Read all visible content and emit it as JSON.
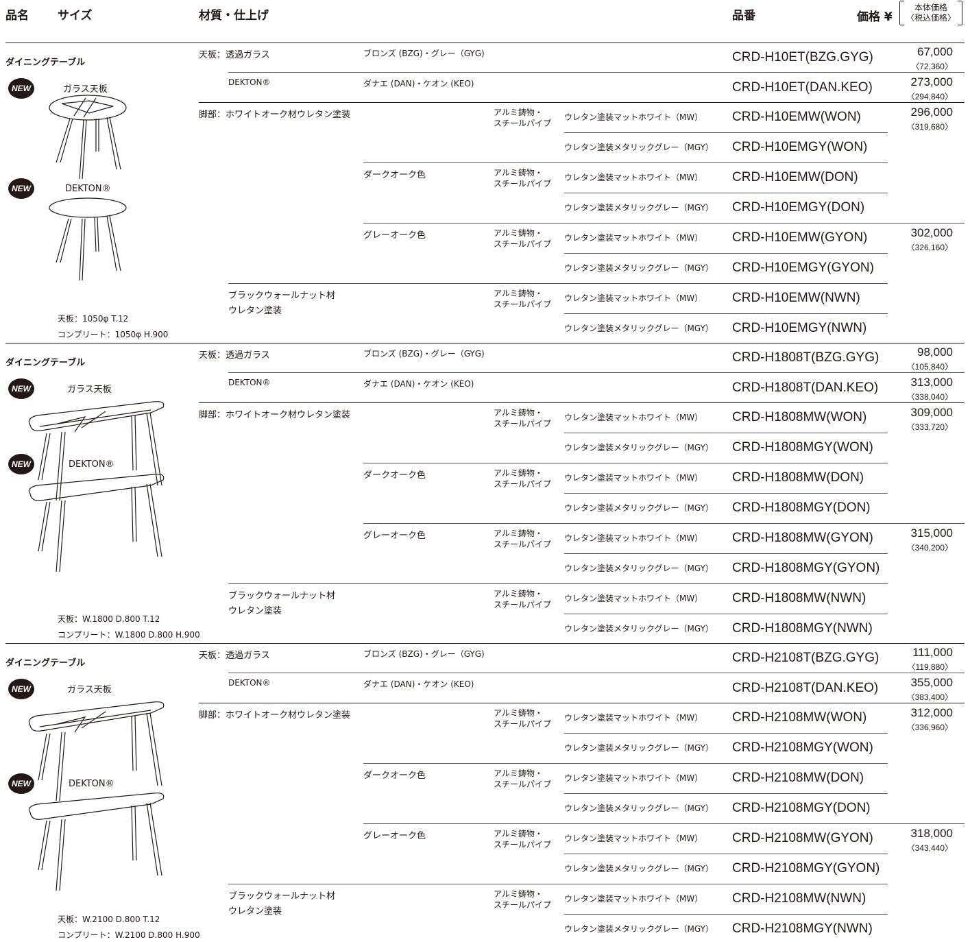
{
  "header": {
    "name": "品名",
    "size": "サイズ",
    "material": "材質・仕上げ",
    "part_number": "品番",
    "price": "価格 ¥",
    "price_note_1": "本体価格",
    "price_note_2": "〈税込価格〉"
  },
  "sections": [
    {
      "title": "ダイニングテーブル",
      "badge1": "NEW",
      "label1": "ガラス天板",
      "badge2": "NEW",
      "label2": "DEKTON®",
      "dim1": "天板：1050φ T.12",
      "dim2": "コンプリート：1050φ H.900",
      "top_glass_label": "天板：透過ガラス",
      "top_glass_color": "ブロンズ (BZG)・グレー（GYG)",
      "top_glass_pn": "CRD-H10ET(BZG.GYG)",
      "top_glass_price": "67,000",
      "top_glass_tax": "〈72,360〉",
      "top_dekton_label": "DEKTON®",
      "top_dekton_color": "ダナエ (DAN)・ケオン (KEO)",
      "top_dekton_pn": "CRD-H10ET(DAN.KEO)",
      "top_dekton_price": "273,000",
      "top_dekton_tax": "〈294,840〉",
      "leg_label": "脚部：ホワイトオーク材ウレタン塗装",
      "leg_dark": "ダークオーク色",
      "leg_grey": "グレーオーク色",
      "leg_walnut_1": "ブラックウォールナット材",
      "leg_walnut_2": "ウレタン塗装",
      "pns": [
        "CRD-H10EMW(WON)",
        "CRD-H10EMGY(WON)",
        "CRD-H10EMW(DON)",
        "CRD-H10EMGY(DON)",
        "CRD-H10EMW(GYON)",
        "CRD-H10EMGY(GYON)",
        "CRD-H10EMW(NWN)",
        "CRD-H10EMGY(NWN)"
      ],
      "price_a": "296,000",
      "tax_a": "〈319,680〉",
      "price_b": "302,000",
      "tax_b": "〈326,160〉"
    },
    {
      "title": "ダイニングテーブル",
      "badge1": "NEW",
      "label1": "ガラス天板",
      "badge2": "NEW",
      "label2": "DEKTON®",
      "dim1": "天板：W.1800 D.800 T.12",
      "dim2": "コンプリート：W.1800 D.800 H.900",
      "top_glass_label": "天板：透過ガラス",
      "top_glass_color": "ブロンズ (BZG)・グレー（GYG)",
      "top_glass_pn": "CRD-H1808T(BZG.GYG)",
      "top_glass_price": "98,000",
      "top_glass_tax": "〈105,840〉",
      "top_dekton_label": "DEKTON®",
      "top_dekton_color": "ダナエ (DAN)・ケオン (KEO)",
      "top_dekton_pn": "CRD-H1808T(DAN.KEO)",
      "top_dekton_price": "313,000",
      "top_dekton_tax": "〈338,040〉",
      "leg_label": "脚部：ホワイトオーク材ウレタン塗装",
      "leg_dark": "ダークオーク色",
      "leg_grey": "グレーオーク色",
      "leg_walnut_1": "ブラックウォールナット材",
      "leg_walnut_2": "ウレタン塗装",
      "pns": [
        "CRD-H1808MW(WON)",
        "CRD-H1808MGY(WON)",
        "CRD-H1808MW(DON)",
        "CRD-H1808MGY(DON)",
        "CRD-H1808MW(GYON)",
        "CRD-H1808MGY(GYON)",
        "CRD-H1808MW(NWN)",
        "CRD-H1808MGY(NWN)"
      ],
      "price_a": "309,000",
      "tax_a": "〈333,720〉",
      "price_b": "315,000",
      "tax_b": "〈340,200〉"
    },
    {
      "title": "ダイニングテーブル",
      "badge1": "NEW",
      "label1": "ガラス天板",
      "badge2": "NEW",
      "label2": "DEKTON®",
      "dim1": "天板：W.2100 D.800 T.12",
      "dim2": "コンプリート：W.2100 D.800 H.900",
      "top_glass_label": "天板：透過ガラス",
      "top_glass_color": "ブロンズ (BZG)・グレー（GYG)",
      "top_glass_pn": "CRD-H2108T(BZG.GYG)",
      "top_glass_price": "111,000",
      "top_glass_tax": "〈119,880〉",
      "top_dekton_label": "DEKTON®",
      "top_dekton_color": "ダナエ (DAN)・ケオン (KEO)",
      "top_dekton_pn": "CRD-H2108T(DAN.KEO)",
      "top_dekton_price": "355,000",
      "top_dekton_tax": "〈383,400〉",
      "leg_label": "脚部：ホワイトオーク材ウレタン塗装",
      "leg_dark": "ダークオーク色",
      "leg_grey": "グレーオーク色",
      "leg_walnut_1": "ブラックウォールナット材",
      "leg_walnut_2": "ウレタン塗装",
      "pns": [
        "CRD-H2108MW(WON)",
        "CRD-H2108MGY(WON)",
        "CRD-H2108MW(DON)",
        "CRD-H2108MGY(DON)",
        "CRD-H2108MW(GYON)",
        "CRD-H2108MGY(GYON)",
        "CRD-H2108MW(NWN)",
        "CRD-H2108MGY(NWN)"
      ],
      "price_a": "312,000",
      "tax_a": "〈336,960〉",
      "price_b": "318,000",
      "tax_b": "〈343,440〉"
    }
  ],
  "common": {
    "leg_mat_1": "アルミ鋳物・",
    "leg_mat_2": "スチールパイプ",
    "finish_mw": "ウレタン塗装マットホワイト（MW）",
    "finish_mgy": "ウレタン塗装メタリックグレー（MGY）"
  }
}
